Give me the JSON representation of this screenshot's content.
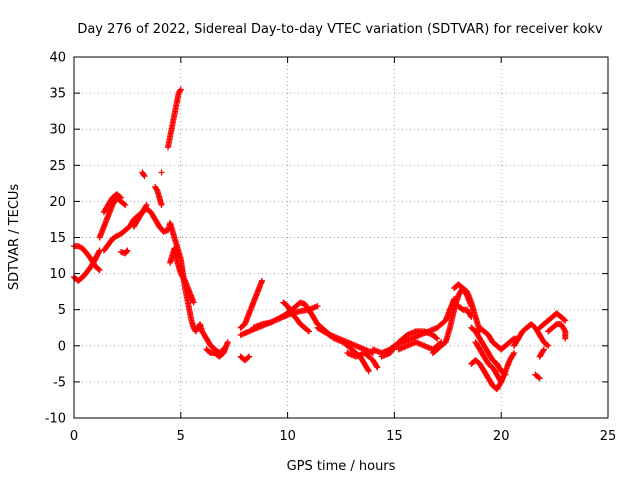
{
  "chart_data": {
    "type": "scatter",
    "title": "Day 276 of 2022, Sidereal Day-to-day VTEC variation (SDTVAR) for receiver kokv",
    "xlabel": "GPS time / hours",
    "ylabel": "SDTVAR / TECUs",
    "xlim": [
      0,
      25
    ],
    "ylim": [
      -10,
      40
    ],
    "xticks": [
      0,
      5,
      10,
      15,
      20,
      25
    ],
    "yticks": [
      -10,
      -5,
      0,
      5,
      10,
      15,
      20,
      25,
      30,
      35,
      40
    ],
    "grid": true,
    "marker": "+",
    "series": [
      {
        "name": "SDTVAR",
        "color": "#ff0000",
        "tracks": [
          [
            [
              0.0,
              9.5
            ],
            [
              0.2,
              9.0
            ],
            [
              0.4,
              9.5
            ],
            [
              0.6,
              10.2
            ],
            [
              0.8,
              11.0
            ],
            [
              1.0,
              12.0
            ],
            [
              1.2,
              13.2
            ]
          ],
          [
            [
              0.0,
              13.8
            ],
            [
              0.2,
              13.8
            ],
            [
              0.4,
              13.5
            ],
            [
              0.6,
              12.8
            ],
            [
              0.8,
              12.0
            ],
            [
              1.0,
              11.0
            ],
            [
              1.2,
              10.5
            ]
          ],
          [
            [
              1.2,
              15.0
            ],
            [
              1.4,
              16.5
            ],
            [
              1.6,
              18.0
            ],
            [
              1.8,
              19.5
            ],
            [
              2.0,
              20.5
            ],
            [
              2.2,
              20.0
            ],
            [
              2.4,
              19.5
            ]
          ],
          [
            [
              1.4,
              18.5
            ],
            [
              1.6,
              19.5
            ],
            [
              1.8,
              20.5
            ],
            [
              2.0,
              21.0
            ],
            [
              2.2,
              20.5
            ]
          ],
          [
            [
              1.4,
              13.2
            ],
            [
              1.6,
              14.0
            ],
            [
              1.8,
              14.8
            ],
            [
              2.0,
              15.2
            ],
            [
              2.2,
              15.5
            ],
            [
              2.4,
              16.0
            ],
            [
              2.6,
              16.5
            ],
            [
              2.8,
              17.5
            ],
            [
              3.0,
              18.0
            ],
            [
              3.2,
              18.5
            ],
            [
              3.4,
              19.0
            ],
            [
              3.6,
              18.5
            ],
            [
              3.8,
              17.5
            ],
            [
              4.0,
              16.5
            ]
          ],
          [
            [
              2.2,
              13.0
            ],
            [
              2.4,
              12.8
            ],
            [
              2.5,
              13.2
            ]
          ],
          [
            [
              2.8,
              16.5
            ],
            [
              3.0,
              17.5
            ],
            [
              3.2,
              18.5
            ],
            [
              3.4,
              19.5
            ]
          ],
          [
            [
              3.2,
              24.0
            ],
            [
              3.3,
              23.5
            ]
          ],
          [
            [
              3.8,
              22.0
            ],
            [
              3.9,
              21.5
            ],
            [
              4.0,
              20.5
            ],
            [
              4.1,
              19.5
            ]
          ],
          [
            [
              4.1,
              24.0
            ]
          ],
          [
            [
              4.4,
              27.5
            ],
            [
              4.5,
              29.0
            ],
            [
              4.6,
              30.5
            ],
            [
              4.7,
              32.0
            ],
            [
              4.8,
              33.5
            ],
            [
              4.9,
              35.0
            ],
            [
              5.0,
              35.5
            ]
          ],
          [
            [
              4.0,
              16.5
            ],
            [
              4.2,
              15.8
            ],
            [
              4.4,
              16.0
            ],
            [
              4.5,
              17.0
            ],
            [
              4.6,
              16.0
            ],
            [
              4.7,
              15.0
            ],
            [
              4.8,
              14.0
            ],
            [
              4.9,
              13.0
            ],
            [
              5.0,
              12.0
            ],
            [
              5.1,
              10.0
            ],
            [
              5.2,
              8.0
            ],
            [
              5.3,
              6.5
            ],
            [
              5.4,
              5.0
            ],
            [
              5.5,
              3.5
            ],
            [
              5.6,
              2.5
            ],
            [
              5.7,
              2.0
            ],
            [
              5.8,
              2.5
            ],
            [
              5.9,
              3.0
            ],
            [
              6.0,
              2.0
            ],
            [
              6.2,
              1.0
            ],
            [
              6.4,
              0.0
            ],
            [
              6.6,
              -0.5
            ],
            [
              6.8,
              -1.0
            ],
            [
              7.0,
              -0.5
            ]
          ],
          [
            [
              4.5,
              11.5
            ],
            [
              4.6,
              12.5
            ],
            [
              4.7,
              13.5
            ],
            [
              4.8,
              12.0
            ],
            [
              4.9,
              11.0
            ],
            [
              5.0,
              10.0
            ],
            [
              5.2,
              9.0
            ],
            [
              5.4,
              7.5
            ],
            [
              5.6,
              6.0
            ]
          ],
          [
            [
              6.2,
              -0.5
            ],
            [
              6.4,
              -1.0
            ],
            [
              6.6,
              -1.0
            ],
            [
              6.8,
              -1.5
            ],
            [
              7.0,
              -1.0
            ],
            [
              7.2,
              0.5
            ]
          ],
          [
            [
              7.8,
              -1.5
            ],
            [
              8.0,
              -2.0
            ],
            [
              8.2,
              -1.5
            ]
          ],
          [
            [
              7.8,
              2.5
            ],
            [
              8.0,
              3.0
            ],
            [
              8.2,
              4.5
            ],
            [
              8.4,
              6.0
            ],
            [
              8.6,
              7.5
            ],
            [
              8.8,
              9.0
            ]
          ],
          [
            [
              7.8,
              1.5
            ],
            [
              8.2,
              2.0
            ],
            [
              8.6,
              2.5
            ],
            [
              9.0,
              3.0
            ],
            [
              9.4,
              3.5
            ],
            [
              9.8,
              4.0
            ],
            [
              10.2,
              4.5
            ],
            [
              10.6,
              4.8
            ],
            [
              11.0,
              5.0
            ],
            [
              11.4,
              5.5
            ]
          ],
          [
            [
              8.4,
              2.5
            ],
            [
              8.8,
              3.0
            ],
            [
              9.2,
              3.2
            ],
            [
              9.6,
              3.8
            ],
            [
              10.0,
              4.5
            ],
            [
              10.4,
              5.5
            ],
            [
              10.6,
              6.0
            ],
            [
              10.8,
              5.8
            ],
            [
              11.0,
              5.0
            ],
            [
              11.2,
              4.0
            ],
            [
              11.4,
              3.0
            ],
            [
              11.6,
              2.5
            ],
            [
              12.0,
              1.5
            ],
            [
              12.4,
              1.0
            ],
            [
              12.8,
              0.5
            ],
            [
              13.2,
              0.0
            ],
            [
              13.6,
              -0.5
            ],
            [
              14.0,
              -1.0
            ]
          ],
          [
            [
              9.8,
              6.0
            ],
            [
              10.0,
              5.5
            ],
            [
              10.2,
              4.5
            ],
            [
              10.4,
              3.8
            ],
            [
              10.6,
              3.0
            ],
            [
              10.8,
              2.5
            ],
            [
              11.0,
              2.0
            ]
          ],
          [
            [
              11.4,
              2.5
            ],
            [
              11.8,
              1.8
            ],
            [
              12.2,
              1.0
            ],
            [
              12.6,
              0.5
            ],
            [
              13.0,
              -0.5
            ],
            [
              13.4,
              -1.5
            ],
            [
              13.6,
              -2.5
            ],
            [
              13.8,
              -3.5
            ]
          ],
          [
            [
              12.8,
              -1.0
            ],
            [
              13.2,
              -1.5
            ],
            [
              13.6,
              -1.0
            ],
            [
              14.0,
              -2.0
            ],
            [
              14.2,
              -3.0
            ]
          ],
          [
            [
              14.0,
              -0.5
            ],
            [
              14.4,
              -1.0
            ],
            [
              14.8,
              -0.5
            ],
            [
              15.0,
              0.0
            ],
            [
              15.4,
              0.5
            ],
            [
              15.8,
              1.0
            ],
            [
              16.2,
              1.5
            ],
            [
              16.6,
              2.0
            ],
            [
              17.0,
              2.5
            ],
            [
              17.4,
              3.5
            ],
            [
              17.6,
              5.0
            ],
            [
              17.8,
              6.5
            ]
          ],
          [
            [
              14.4,
              -1.5
            ],
            [
              14.8,
              -1.0
            ],
            [
              15.2,
              0.5
            ],
            [
              15.6,
              1.5
            ],
            [
              16.0,
              2.0
            ],
            [
              16.4,
              2.0
            ],
            [
              16.8,
              1.5
            ],
            [
              17.0,
              1.0
            ]
          ],
          [
            [
              15.2,
              -0.5
            ],
            [
              15.6,
              0.0
            ],
            [
              16.0,
              0.5
            ],
            [
              16.4,
              0.0
            ],
            [
              16.8,
              -0.5
            ],
            [
              17.2,
              0.5
            ]
          ],
          [
            [
              16.8,
              -1.0
            ],
            [
              17.0,
              -0.5
            ],
            [
              17.4,
              0.5
            ],
            [
              17.6,
              2.5
            ],
            [
              17.8,
              5.0
            ],
            [
              18.0,
              7.0
            ],
            [
              18.2,
              8.0
            ],
            [
              18.4,
              7.5
            ],
            [
              18.6,
              6.0
            ],
            [
              18.8,
              4.0
            ],
            [
              19.0,
              2.0
            ]
          ],
          [
            [
              17.8,
              8.0
            ],
            [
              18.0,
              8.5
            ],
            [
              18.2,
              8.0
            ],
            [
              18.4,
              7.0
            ],
            [
              18.6,
              5.5
            ]
          ],
          [
            [
              18.0,
              5.5
            ],
            [
              18.2,
              5.0
            ],
            [
              18.4,
              5.0
            ],
            [
              18.6,
              4.0
            ]
          ],
          [
            [
              18.6,
              2.5
            ],
            [
              18.8,
              2.0
            ],
            [
              19.0,
              1.0
            ],
            [
              19.2,
              0.0
            ],
            [
              19.4,
              -1.0
            ],
            [
              19.6,
              -2.0
            ],
            [
              19.8,
              -2.5
            ],
            [
              20.0,
              -3.5
            ],
            [
              20.2,
              -4.0
            ]
          ],
          [
            [
              18.8,
              0.5
            ],
            [
              19.0,
              -0.5
            ],
            [
              19.2,
              -1.5
            ],
            [
              19.4,
              -2.5
            ],
            [
              19.6,
              -3.0
            ],
            [
              19.8,
              -4.0
            ],
            [
              20.0,
              -5.0
            ]
          ],
          [
            [
              18.6,
              -2.5
            ],
            [
              18.8,
              -2.0
            ],
            [
              19.0,
              -2.5
            ],
            [
              19.2,
              -3.5
            ],
            [
              19.4,
              -4.5
            ],
            [
              19.6,
              -5.5
            ],
            [
              19.8,
              -6.0
            ],
            [
              20.0,
              -5.0
            ],
            [
              20.2,
              -3.5
            ],
            [
              20.4,
              -2.0
            ],
            [
              20.6,
              -1.0
            ]
          ],
          [
            [
              19.0,
              2.5
            ],
            [
              19.2,
              2.0
            ],
            [
              19.4,
              1.5
            ],
            [
              19.6,
              0.5
            ],
            [
              19.8,
              0.0
            ],
            [
              20.0,
              -0.5
            ],
            [
              20.2,
              0.0
            ],
            [
              20.4,
              0.5
            ],
            [
              20.6,
              1.0
            ],
            [
              20.8,
              1.0
            ]
          ],
          [
            [
              20.6,
              0.0
            ],
            [
              20.8,
              1.0
            ],
            [
              21.0,
              2.0
            ],
            [
              21.2,
              2.5
            ],
            [
              21.4,
              3.0
            ],
            [
              21.6,
              2.5
            ],
            [
              21.8,
              1.5
            ],
            [
              22.0,
              0.5
            ],
            [
              22.2,
              0.0
            ]
          ],
          [
            [
              21.6,
              -4.0
            ],
            [
              21.8,
              -4.5
            ]
          ],
          [
            [
              21.8,
              2.5
            ],
            [
              22.0,
              3.0
            ],
            [
              22.2,
              3.5
            ],
            [
              22.4,
              4.0
            ],
            [
              22.6,
              4.5
            ],
            [
              22.8,
              4.0
            ],
            [
              23.0,
              3.5
            ]
          ],
          [
            [
              22.2,
              2.0
            ],
            [
              22.4,
              2.5
            ],
            [
              22.6,
              3.0
            ],
            [
              22.8,
              3.0
            ],
            [
              23.0,
              2.0
            ],
            [
              23.0,
              1.0
            ]
          ],
          [
            [
              21.8,
              -1.5
            ],
            [
              22.0,
              -0.5
            ]
          ]
        ]
      }
    ]
  }
}
